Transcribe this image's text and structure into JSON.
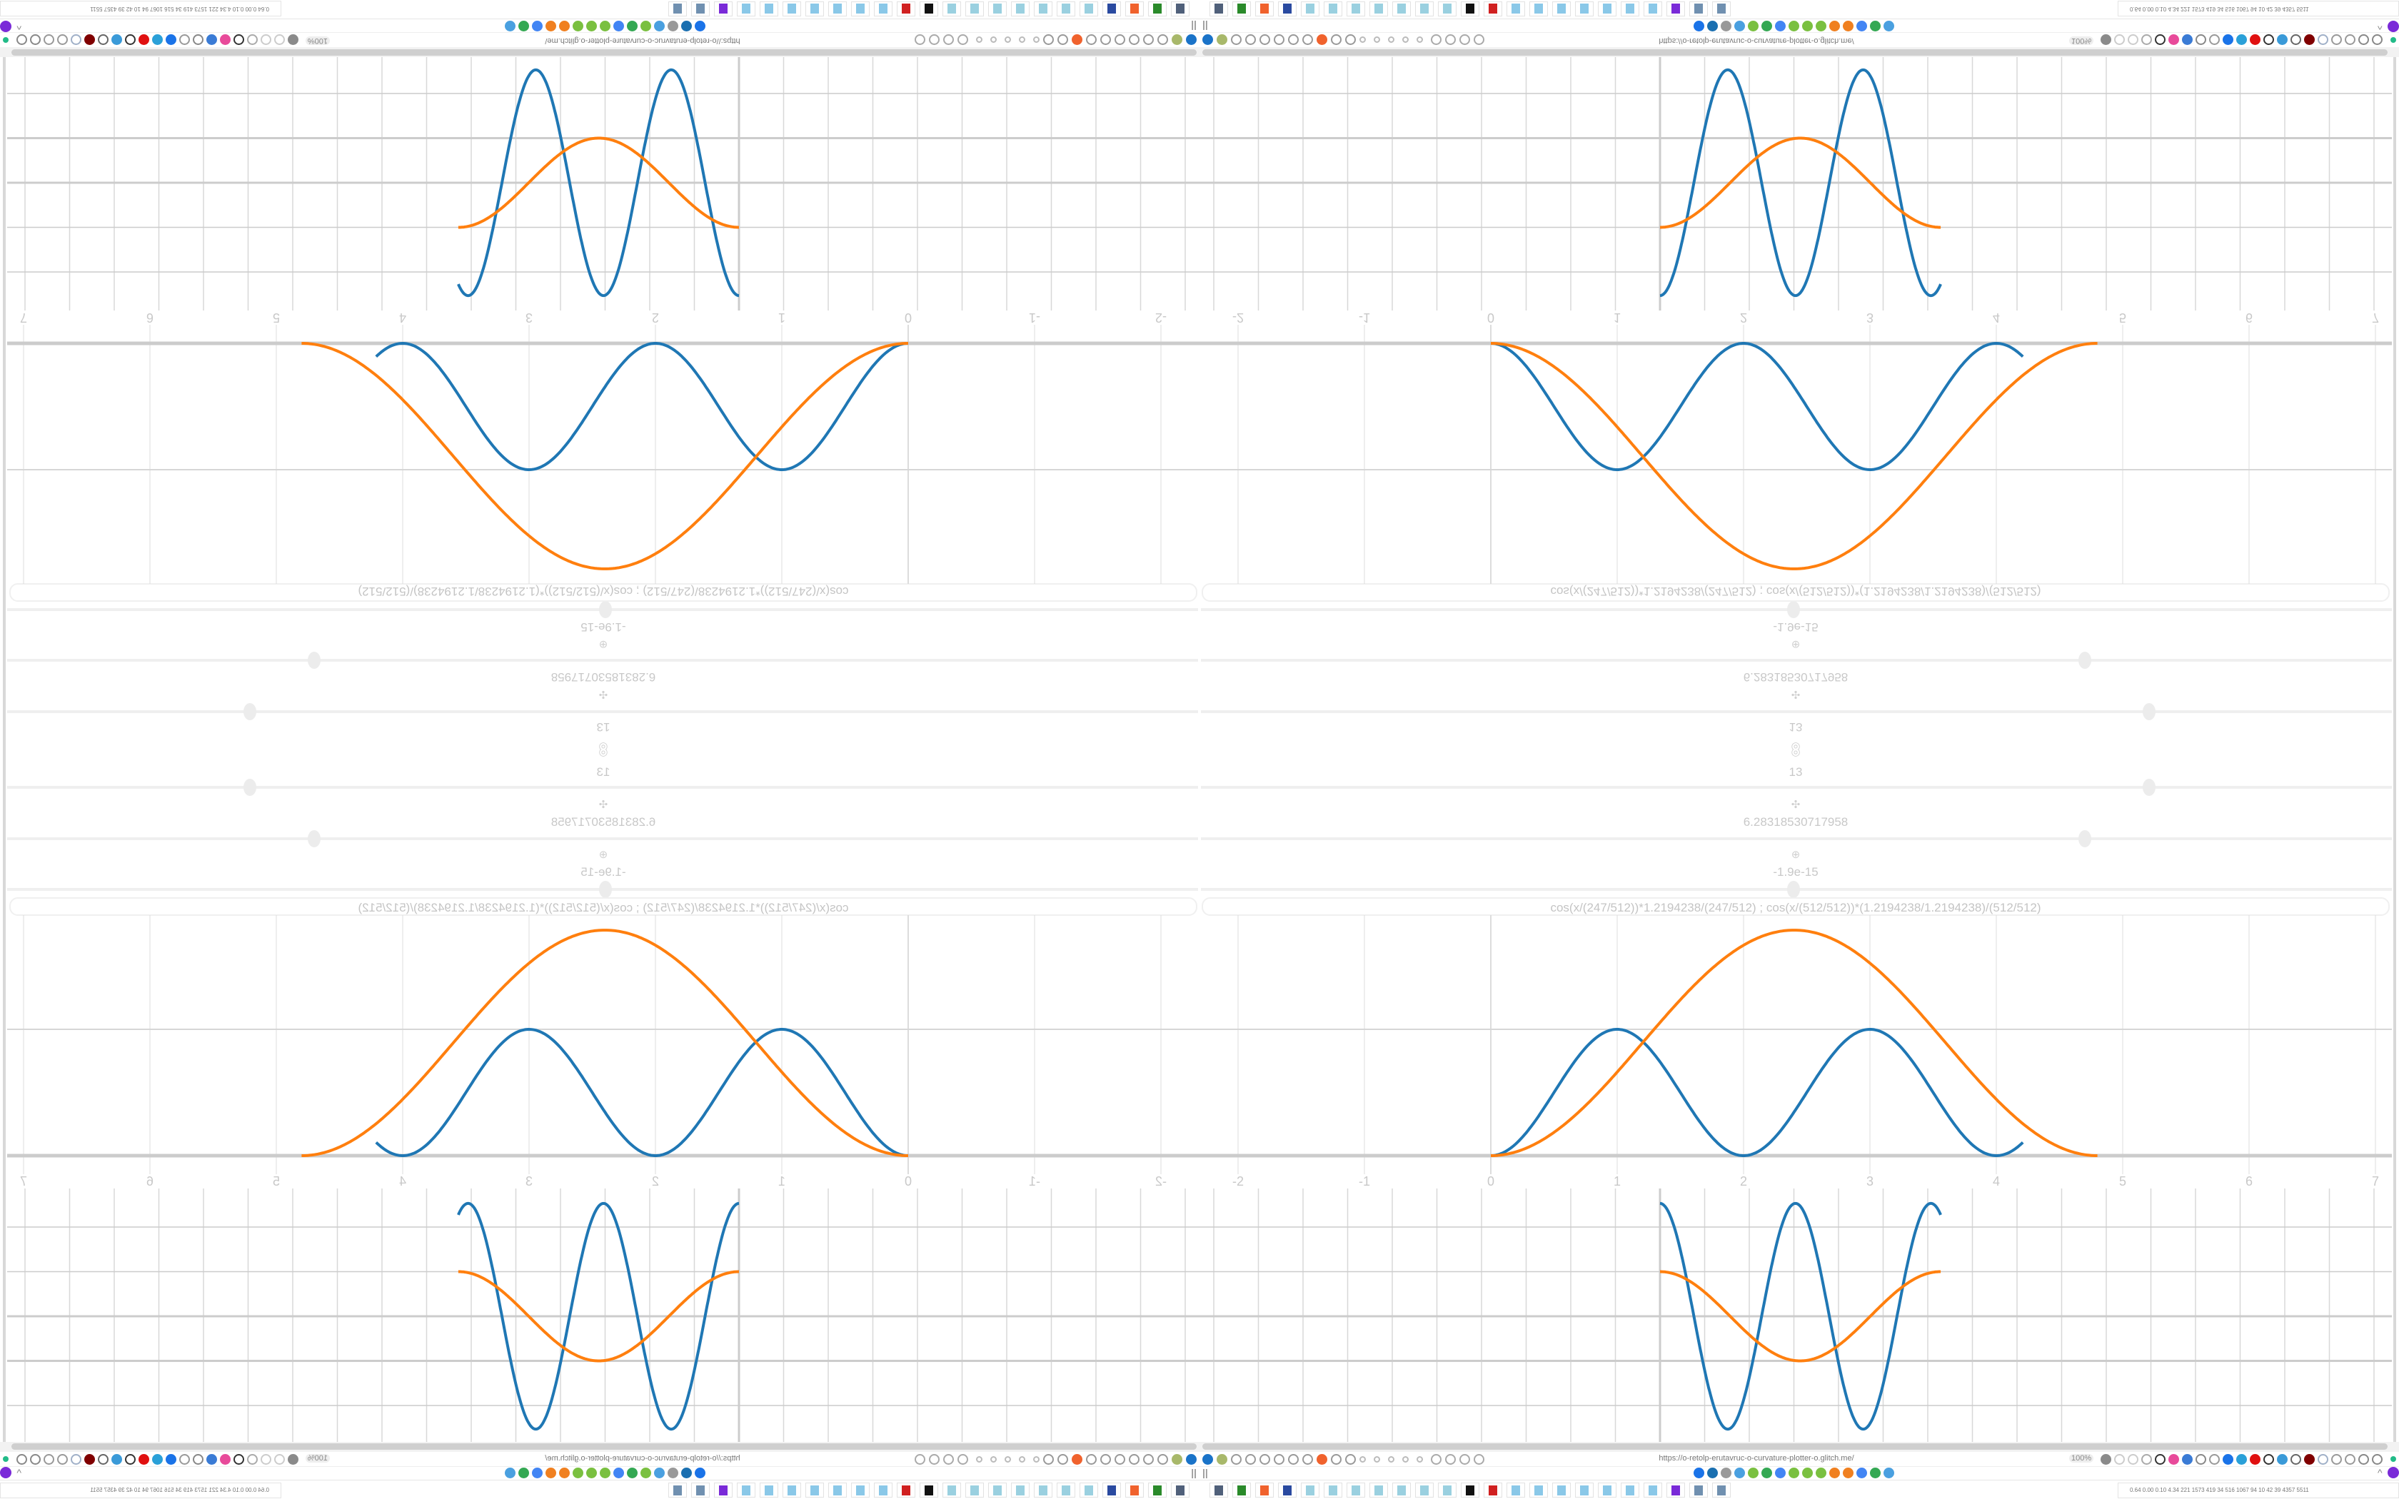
{
  "browser": {
    "url": "https://o-retolp-erutavruc-o-curvature-plotter-o.glitch.me/",
    "zoom_level": "100%",
    "nav_left_icons": [
      {
        "name": "filter",
        "color": "#1a73c8"
      },
      {
        "name": "power",
        "color": "#a8b86a"
      },
      {
        "name": "globe",
        "color": "#999999"
      },
      {
        "name": "globe",
        "color": "#999999"
      },
      {
        "name": "headphones",
        "color": "#999999"
      },
      {
        "name": "headphones",
        "color": "#999999"
      },
      {
        "name": "globe",
        "color": "#999999"
      },
      {
        "name": "wrench",
        "color": "#999999"
      },
      {
        "name": "firefox",
        "color": "#f0622d"
      },
      {
        "name": "gear",
        "color": "#999999"
      },
      {
        "name": "globe",
        "color": "#999999"
      },
      {
        "name": "dot",
        "color": "#bbbbbb"
      },
      {
        "name": "dot",
        "color": "#bbbbbb"
      },
      {
        "name": "dot",
        "color": "#bbbbbb"
      },
      {
        "name": "dot",
        "color": "#bbbbbb"
      },
      {
        "name": "dot",
        "color": "#bbbbbb"
      },
      {
        "name": "folder",
        "color": "#aaaaaa"
      },
      {
        "name": "back",
        "color": "#aaaaaa"
      },
      {
        "name": "shield",
        "color": "#aaaaaa"
      },
      {
        "name": "lock",
        "color": "#aaaaaa"
      }
    ],
    "nav_right_icons": [
      {
        "name": "translate",
        "color": "#8a8a8a"
      },
      {
        "name": "star",
        "color": "#cccccc"
      },
      {
        "name": "forward",
        "color": "#cccccc"
      },
      {
        "name": "reload",
        "color": "#aaaaaa"
      },
      {
        "name": "download",
        "color": "#333333"
      },
      {
        "name": "color-picker",
        "color": "#e84a9a"
      },
      {
        "name": "translate-alt",
        "color": "#3a7bd5"
      },
      {
        "name": "mouse",
        "color": "#888888"
      },
      {
        "name": "gear",
        "color": "#999999"
      },
      {
        "name": "add",
        "color": "#1a73e8"
      },
      {
        "name": "upload",
        "color": "#2aa0d8"
      },
      {
        "name": "record",
        "color": "#e01010"
      },
      {
        "name": "trash",
        "color": "#333333"
      },
      {
        "name": "network",
        "color": "#3a9ad8"
      },
      {
        "name": "archive",
        "color": "#666666"
      },
      {
        "name": "ublock",
        "color": "#800000"
      },
      {
        "name": "shield",
        "color": "#a0b0c8"
      },
      {
        "name": "globe",
        "color": "#999999"
      },
      {
        "name": "puzzle",
        "color": "#999999"
      },
      {
        "name": "wrench",
        "color": "#888888"
      },
      {
        "name": "settings",
        "color": "#888888"
      }
    ],
    "status_dot_color": "#22bb88",
    "bookmark_icons": [
      {
        "name": "mail",
        "color": "#1a73e8"
      },
      {
        "name": "moon",
        "color": "#1a6fb0"
      },
      {
        "name": "link",
        "color": "#999999"
      },
      {
        "name": "snowflake",
        "color": "#4aa0e0"
      },
      {
        "name": "leaf",
        "color": "#7ac040"
      },
      {
        "name": "google",
        "color": "#34a853"
      },
      {
        "name": "google",
        "color": "#4285f4"
      },
      {
        "name": "google",
        "color": "#7ac040"
      },
      {
        "name": "google",
        "color": "#7ac040"
      },
      {
        "name": "google",
        "color": "#7ac040"
      },
      {
        "name": "gear",
        "color": "#f08020"
      },
      {
        "name": "gear",
        "color": "#f08020"
      },
      {
        "name": "google",
        "color": "#4285f4"
      },
      {
        "name": "google",
        "color": "#34a853"
      },
      {
        "name": "snowflake",
        "color": "#4aa0e0"
      }
    ],
    "sidebar_toggle": "||",
    "chevron_up": "^",
    "owl_color": "#7a2ad8"
  },
  "taskbar": {
    "apps": [
      {
        "name": "monitor",
        "color": "#50607a"
      },
      {
        "name": "terminal",
        "color": "#2a8a2a"
      },
      {
        "name": "firefox",
        "color": "#f0622d"
      },
      {
        "name": "floppy",
        "color": "#2a4aa0"
      },
      {
        "name": "notepad",
        "color": "#9ad0e0"
      },
      {
        "name": "notepad",
        "color": "#9ad0e0"
      },
      {
        "name": "notepad",
        "color": "#9ad0e0"
      },
      {
        "name": "notepad",
        "color": "#9ad0e0"
      },
      {
        "name": "notepad",
        "color": "#9ad0e0"
      },
      {
        "name": "notepad",
        "color": "#9ad0e0"
      },
      {
        "name": "notepad",
        "color": "#9ad0e0"
      },
      {
        "name": "inkscape",
        "color": "#111111"
      },
      {
        "name": "settings-red",
        "color": "#d02020"
      },
      {
        "name": "calculator",
        "color": "#8ac8e8"
      },
      {
        "name": "calculator",
        "color": "#8ac8e8"
      },
      {
        "name": "calculator",
        "color": "#8ac8e8"
      },
      {
        "name": "calculator",
        "color": "#8ac8e8"
      },
      {
        "name": "calculator",
        "color": "#8ac8e8"
      },
      {
        "name": "calculator",
        "color": "#8ac8e8"
      },
      {
        "name": "calculator",
        "color": "#8ac8e8"
      },
      {
        "name": "owl",
        "color": "#7a2ad8"
      },
      {
        "name": "document",
        "color": "#7090b0"
      },
      {
        "name": "document",
        "color": "#7090b0"
      }
    ],
    "stats": "0.64 0.00 0.10 4.34  221 1573 419   34   516 1067  94   10   42   39  4357 5511"
  },
  "controls": {
    "top_icon": "◎",
    "sliders": [
      {
        "icon": "◎",
        "value": "13",
        "level": 0.8
      },
      {
        "icon": "✣",
        "value": "6.28318530717958",
        "level": 0.746
      },
      {
        "icon": "⊕",
        "value": "-1.9e-15",
        "level": 0.5
      }
    ],
    "formula": "cos(x/(247/512))*1.2194238/(247/512)   ;   cos(x/(512/512))*(1.2194238/1.2194238)/(512/512)"
  },
  "chart_data": [
    {
      "type": "line",
      "x_ticks": [
        "-2",
        "-1",
        "0",
        "1",
        "2",
        "3",
        "4",
        "5",
        "6",
        "7"
      ],
      "xlim": [
        -2.3,
        7.1
      ],
      "ylim": [
        -0.25,
        1.9
      ],
      "grid": true,
      "series": [
        {
          "color": "#1f77b4",
          "x_range": [
            0,
            4.21
          ],
          "shape": "sin^2",
          "amplitude": 1,
          "period": 2
        },
        {
          "color": "#ff7f0e",
          "x_range": [
            0,
            4.8
          ],
          "shape": "sin^2",
          "amplitude": 1.785,
          "period": 9.6
        }
      ]
    },
    {
      "type": "line",
      "xlim": [
        -5.2,
        16.7
      ],
      "ylim": [
        -2.8,
        2.8
      ],
      "grid": true,
      "series": [
        {
          "color": "#1f77b4",
          "x_range": [
            0,
            6.29
          ],
          "shape": "cos",
          "amplitude": 2.53,
          "frequency": 2.07
        },
        {
          "color": "#ff7f0e",
          "x_range": [
            0,
            6.29
          ],
          "shape": "cos",
          "amplitude": 1,
          "frequency": 1
        }
      ]
    }
  ]
}
